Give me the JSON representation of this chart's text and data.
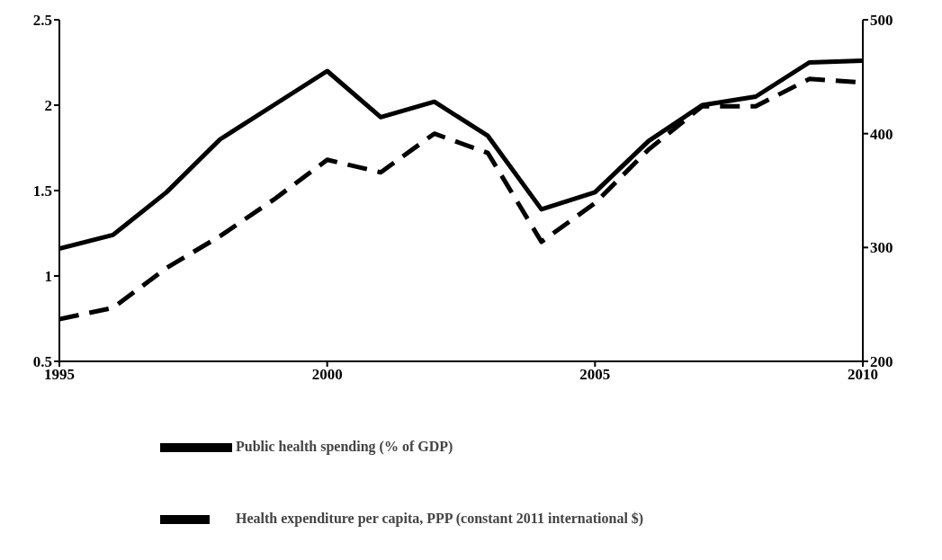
{
  "chart_data": {
    "type": "line",
    "x": [
      1995,
      1996,
      1997,
      1998,
      1999,
      2000,
      2001,
      2002,
      2003,
      2004,
      2005,
      2006,
      2007,
      2008,
      2009,
      2010
    ],
    "series": [
      {
        "name": "Public health spending (% of GDP)",
        "color": "#000000",
        "line_style": "solid",
        "values": [
          1.16,
          1.24,
          1.49,
          1.8,
          2.0,
          2.2,
          1.93,
          2.02,
          1.82,
          1.39,
          1.49,
          1.79,
          2.0,
          2.05,
          2.25,
          2.26
        ]
      },
      {
        "name": "Health expenditure per capita, PPP (constant 2011 international $)",
        "color": "#000000",
        "line_style": "dashed",
        "axis": "y2",
        "values": [
          237,
          247,
          282,
          310,
          342,
          377,
          366,
          400,
          383,
          305,
          339,
          386,
          424,
          424,
          448,
          445
        ]
      }
    ],
    "xlim": [
      1995,
      2010
    ],
    "xticks": [
      1995,
      2000,
      2005,
      2010
    ],
    "ylim": [
      0.5,
      2.5
    ],
    "yticks": [
      0.5,
      1,
      1.5,
      2,
      2.5
    ],
    "y2lim": [
      200,
      500
    ],
    "y2ticks": [
      200,
      300,
      400,
      500
    ],
    "legend": "bottom",
    "marker": "none"
  }
}
